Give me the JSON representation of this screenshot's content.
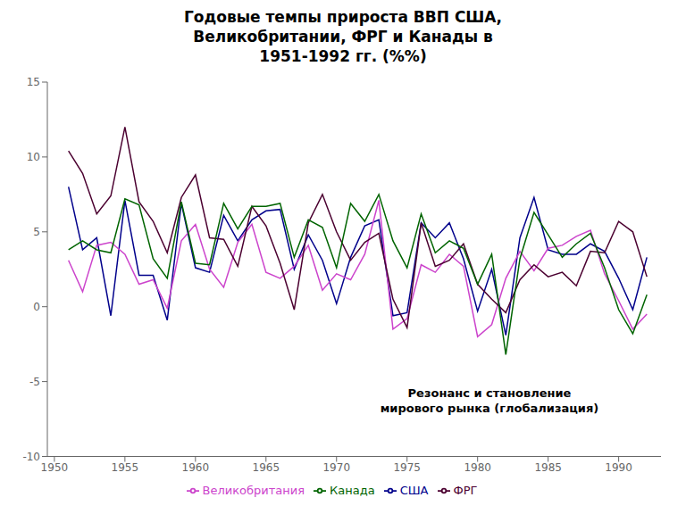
{
  "chart_data": {
    "type": "line",
    "title": "Годовые темпы прироста ВВП США,\nВеликобритании, ФРГ и Канады в\n1951-1992 гг. (%%)",
    "annotation": "Резонанс и становление\nмирового рынка (глобализация)",
    "x": [
      1951,
      1952,
      1953,
      1954,
      1955,
      1956,
      1957,
      1958,
      1959,
      1960,
      1961,
      1962,
      1963,
      1964,
      1965,
      1966,
      1967,
      1968,
      1969,
      1970,
      1971,
      1972,
      1973,
      1974,
      1975,
      1976,
      1977,
      1978,
      1979,
      1980,
      1981,
      1982,
      1983,
      1984,
      1985,
      1986,
      1987,
      1988,
      1989,
      1990,
      1991,
      1992
    ],
    "series": [
      {
        "name": "США",
        "color": "#00008B",
        "values": [
          8.0,
          3.8,
          4.6,
          -0.6,
          7.1,
          2.1,
          2.1,
          -0.9,
          6.9,
          2.6,
          2.3,
          6.1,
          4.4,
          5.8,
          6.4,
          6.5,
          2.5,
          4.8,
          3.1,
          0.2,
          3.3,
          5.4,
          5.8,
          -0.6,
          -0.4,
          5.6,
          4.6,
          5.6,
          3.2,
          -0.3,
          2.5,
          -1.9,
          4.6,
          7.3,
          3.8,
          3.5,
          3.5,
          4.2,
          3.7,
          1.9,
          -0.2,
          3.3
        ]
      },
      {
        "name": "Великобритания",
        "color": "#CC44CC",
        "values": [
          3.1,
          1.0,
          4.1,
          4.3,
          3.5,
          1.5,
          1.8,
          -0.1,
          4.4,
          5.5,
          2.5,
          1.3,
          4.3,
          5.5,
          2.3,
          1.9,
          2.7,
          4.1,
          1.1,
          2.2,
          1.8,
          3.5,
          7.1,
          -1.5,
          -0.8,
          2.8,
          2.3,
          3.5,
          2.7,
          -2.0,
          -1.2,
          1.9,
          3.7,
          2.4,
          3.9,
          4.1,
          4.7,
          5.1,
          2.2,
          0.4,
          -1.5,
          -0.5
        ]
      },
      {
        "name": "ФРГ",
        "color": "#4B0030",
        "values": [
          10.4,
          8.9,
          6.2,
          7.4,
          12.0,
          7.0,
          5.7,
          3.6,
          7.3,
          8.8,
          4.6,
          4.5,
          2.7,
          6.7,
          5.4,
          2.9,
          -0.2,
          5.6,
          7.5,
          5.0,
          3.1,
          4.3,
          4.9,
          0.5,
          -1.4,
          5.6,
          2.7,
          3.1,
          4.2,
          1.5,
          0.5,
          -0.4,
          1.8,
          2.8,
          2.0,
          2.3,
          1.4,
          3.7,
          3.6,
          5.7,
          5.0,
          2.0
        ]
      },
      {
        "name": "Канада",
        "color": "#006400",
        "values": [
          3.8,
          4.4,
          3.8,
          3.6,
          7.2,
          6.8,
          3.2,
          1.9,
          7.0,
          2.9,
          2.8,
          6.9,
          5.2,
          6.7,
          6.7,
          6.9,
          3.3,
          5.8,
          5.3,
          2.6,
          6.9,
          5.7,
          7.5,
          4.4,
          2.6,
          6.2,
          3.6,
          4.4,
          3.9,
          1.5,
          3.5,
          -3.2,
          3.2,
          6.3,
          4.8,
          3.3,
          4.2,
          4.9,
          2.6,
          -0.2,
          -1.8,
          0.8
        ]
      }
    ],
    "xlim": [
      1949.5,
      1993
    ],
    "xticks": [
      1950,
      1955,
      1960,
      1965,
      1970,
      1975,
      1980,
      1985,
      1990
    ],
    "ylim": [
      -10,
      15
    ],
    "yticks": [
      -10,
      -5,
      0,
      5,
      10,
      15
    ],
    "grid": false,
    "legend": "bottom"
  }
}
